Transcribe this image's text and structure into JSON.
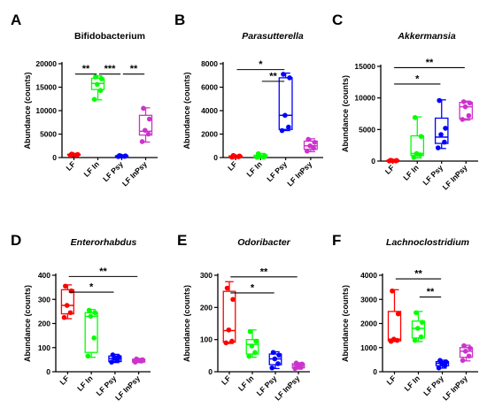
{
  "chart_data": [
    {
      "type": "box",
      "panel_letter": "A",
      "title": "Bifidobacterium",
      "title_italic": false,
      "ylabel": "Abundance (counts)",
      "ylim": [
        0,
        20000
      ],
      "yticks": [
        0,
        5000,
        10000,
        15000,
        20000
      ],
      "categories": [
        "LF",
        "LF In",
        "LF Psy",
        "LF InPsy"
      ],
      "series": [
        {
          "category": "LF",
          "color": "#ff0000",
          "min": 450,
          "q1": 520,
          "median": 600,
          "q3": 700,
          "max": 800,
          "points": [
            500,
            550,
            600,
            650,
            750
          ]
        },
        {
          "category": "LF In",
          "color": "#00ff00",
          "min": 12300,
          "q1": 14500,
          "median": 15800,
          "q3": 16900,
          "max": 17400,
          "points": [
            12400,
            14300,
            15600,
            16800,
            17200
          ]
        },
        {
          "category": "LF Psy",
          "color": "#0000ff",
          "min": 150,
          "q1": 230,
          "median": 300,
          "q3": 380,
          "max": 450,
          "points": [
            200,
            250,
            300,
            350,
            420
          ]
        },
        {
          "category": "LF InPsy",
          "color": "#cc33cc",
          "min": 3300,
          "q1": 4800,
          "median": 5600,
          "q3": 9000,
          "max": 10600,
          "points": [
            3400,
            5000,
            5800,
            8200,
            10500
          ]
        }
      ],
      "significance": [
        {
          "from": 0,
          "to": 1,
          "label": "**",
          "y": 17800
        },
        {
          "from": 1,
          "to": 2,
          "label": "***",
          "y": 17800
        },
        {
          "from": 2,
          "to": 3,
          "label": "**",
          "y": 17800
        }
      ]
    },
    {
      "type": "box",
      "panel_letter": "B",
      "title": "Parasutterella",
      "title_italic": true,
      "ylabel": "Abundance (counts)",
      "ylim": [
        0,
        8000
      ],
      "yticks": [
        0,
        2000,
        4000,
        6000,
        8000
      ],
      "categories": [
        "LF",
        "LF In",
        "LF Psy",
        "LF InPsy"
      ],
      "series": [
        {
          "category": "LF",
          "color": "#ff0000",
          "min": 20,
          "q1": 50,
          "median": 90,
          "q3": 140,
          "max": 200,
          "points": [
            30,
            60,
            90,
            130,
            180
          ]
        },
        {
          "category": "LF In",
          "color": "#00ff00",
          "min": 10,
          "q1": 40,
          "median": 100,
          "q3": 200,
          "max": 350,
          "points": [
            20,
            50,
            100,
            180,
            330
          ]
        },
        {
          "category": "LF Psy",
          "color": "#0000ff",
          "min": 2300,
          "q1": 2400,
          "median": 3600,
          "q3": 6800,
          "max": 7200,
          "points": [
            2300,
            2600,
            3600,
            6800,
            7100
          ]
        },
        {
          "category": "LF InPsy",
          "color": "#cc33cc",
          "min": 500,
          "q1": 700,
          "median": 1000,
          "q3": 1400,
          "max": 1600,
          "points": [
            550,
            800,
            1000,
            1300,
            1550
          ]
        }
      ],
      "significance": [
        {
          "from": 0,
          "to": 2,
          "label": "*",
          "y": 7500
        },
        {
          "from": 1,
          "to": 2,
          "label": "**",
          "y": 6500
        }
      ]
    },
    {
      "type": "box",
      "panel_letter": "C",
      "title": "Akkermansia",
      "title_italic": true,
      "ylabel": "Abundance (counts)",
      "ylim": [
        0,
        15000
      ],
      "yticks": [
        0,
        5000,
        10000,
        15000
      ],
      "categories": [
        "LF",
        "LF In",
        "LF Psy",
        "LF InPsy"
      ],
      "series": [
        {
          "category": "LF",
          "color": "#ff0000",
          "min": 10,
          "q1": 30,
          "median": 60,
          "q3": 100,
          "max": 150,
          "points": [
            20,
            40,
            60,
            90,
            140
          ]
        },
        {
          "category": "LF In",
          "color": "#00ff00",
          "min": 500,
          "q1": 900,
          "median": 1200,
          "q3": 4000,
          "max": 7000,
          "points": [
            600,
            1000,
            1200,
            3900,
            6900
          ]
        },
        {
          "category": "LF Psy",
          "color": "#0000ff",
          "min": 2000,
          "q1": 2800,
          "median": 3800,
          "q3": 6800,
          "max": 9700,
          "points": [
            2100,
            3000,
            4200,
            5200,
            9600
          ]
        },
        {
          "category": "LF InPsy",
          "color": "#cc33cc",
          "min": 6500,
          "q1": 6700,
          "median": 8600,
          "q3": 9300,
          "max": 9500,
          "points": [
            6600,
            7200,
            8600,
            9200,
            9400
          ]
        }
      ],
      "significance": [
        {
          "from": 0,
          "to": 3,
          "label": "**",
          "y": 14800
        },
        {
          "from": 0,
          "to": 2,
          "label": "*",
          "y": 12200
        }
      ]
    },
    {
      "type": "box",
      "panel_letter": "D",
      "title": "Enterorhabdus",
      "title_italic": true,
      "ylabel": "Abundance (counts)",
      "ylim": [
        0,
        400
      ],
      "yticks": [
        0,
        100,
        200,
        300,
        400
      ],
      "categories": [
        "LF",
        "LF In",
        "LF Psy",
        "LF InPsy"
      ],
      "series": [
        {
          "category": "LF",
          "color": "#ff0000",
          "min": 220,
          "q1": 240,
          "median": 275,
          "q3": 340,
          "max": 360,
          "points": [
            225,
            245,
            275,
            335,
            355
          ]
        },
        {
          "category": "LF In",
          "color": "#00ff00",
          "min": 60,
          "q1": 80,
          "median": 230,
          "q3": 245,
          "max": 258,
          "points": [
            65,
            140,
            230,
            245,
            255
          ]
        },
        {
          "category": "LF Psy",
          "color": "#0000ff",
          "min": 38,
          "q1": 42,
          "median": 55,
          "q3": 65,
          "max": 72,
          "points": [
            40,
            48,
            55,
            62,
            70
          ]
        },
        {
          "category": "LF InPsy",
          "color": "#cc33cc",
          "min": 38,
          "q1": 40,
          "median": 47,
          "q3": 52,
          "max": 55,
          "points": [
            40,
            44,
            47,
            50,
            53
          ]
        }
      ],
      "significance": [
        {
          "from": 0,
          "to": 3,
          "label": "**",
          "y": 395
        },
        {
          "from": 0,
          "to": 2,
          "label": "*",
          "y": 330
        }
      ]
    },
    {
      "type": "box",
      "panel_letter": "E",
      "title": "Odoribacter",
      "title_italic": true,
      "ylabel": "Abundance (counts)",
      "ylim": [
        0,
        300
      ],
      "yticks": [
        0,
        100,
        200,
        300
      ],
      "categories": [
        "LF",
        "LF In",
        "LF Psy",
        "LF InPsy"
      ],
      "series": [
        {
          "category": "LF",
          "color": "#ff0000",
          "min": 88,
          "q1": 92,
          "median": 128,
          "q3": 250,
          "max": 280,
          "points": [
            90,
            95,
            130,
            225,
            260
          ]
        },
        {
          "category": "LF In",
          "color": "#00ff00",
          "min": 45,
          "q1": 55,
          "median": 85,
          "q3": 100,
          "max": 130,
          "points": [
            48,
            60,
            80,
            95,
            125
          ]
        },
        {
          "category": "LF Psy",
          "color": "#0000ff",
          "min": 10,
          "q1": 22,
          "median": 40,
          "q3": 55,
          "max": 62,
          "points": [
            12,
            25,
            40,
            52,
            60
          ]
        },
        {
          "category": "LF InPsy",
          "color": "#cc33cc",
          "min": 8,
          "q1": 12,
          "median": 20,
          "q3": 25,
          "max": 28,
          "points": [
            10,
            14,
            20,
            24,
            27
          ]
        }
      ],
      "significance": [
        {
          "from": 0,
          "to": 3,
          "label": "**",
          "y": 295
        },
        {
          "from": 0,
          "to": 2,
          "label": "*",
          "y": 245
        }
      ]
    },
    {
      "type": "box",
      "panel_letter": "F",
      "title": "Lachnoclostridium",
      "title_italic": true,
      "ylabel": "Abundance (counts)",
      "ylim": [
        0,
        4000
      ],
      "yticks": [
        0,
        1000,
        2000,
        3000,
        4000
      ],
      "categories": [
        "LF",
        "LF In",
        "LF Psy",
        "LF InPsy"
      ],
      "series": [
        {
          "category": "LF",
          "color": "#ff0000",
          "min": 1250,
          "q1": 1280,
          "median": 1350,
          "q3": 2500,
          "max": 3400,
          "points": [
            1260,
            1300,
            1350,
            2400,
            3350
          ]
        },
        {
          "category": "LF In",
          "color": "#00ff00",
          "min": 1250,
          "q1": 1400,
          "median": 1800,
          "q3": 2100,
          "max": 2500,
          "points": [
            1300,
            1450,
            1800,
            2050,
            2450
          ]
        },
        {
          "category": "LF Psy",
          "color": "#0000ff",
          "min": 150,
          "q1": 250,
          "median": 350,
          "q3": 420,
          "max": 480,
          "points": [
            160,
            260,
            350,
            410,
            470
          ]
        },
        {
          "category": "LF InPsy",
          "color": "#cc33cc",
          "min": 450,
          "q1": 600,
          "median": 850,
          "q3": 1000,
          "max": 1100,
          "points": [
            470,
            650,
            850,
            980,
            1080
          ]
        }
      ],
      "significance": [
        {
          "from": 0,
          "to": 2,
          "label": "**",
          "y": 3850
        },
        {
          "from": 1,
          "to": 2,
          "label": "**",
          "y": 3100
        }
      ]
    }
  ]
}
